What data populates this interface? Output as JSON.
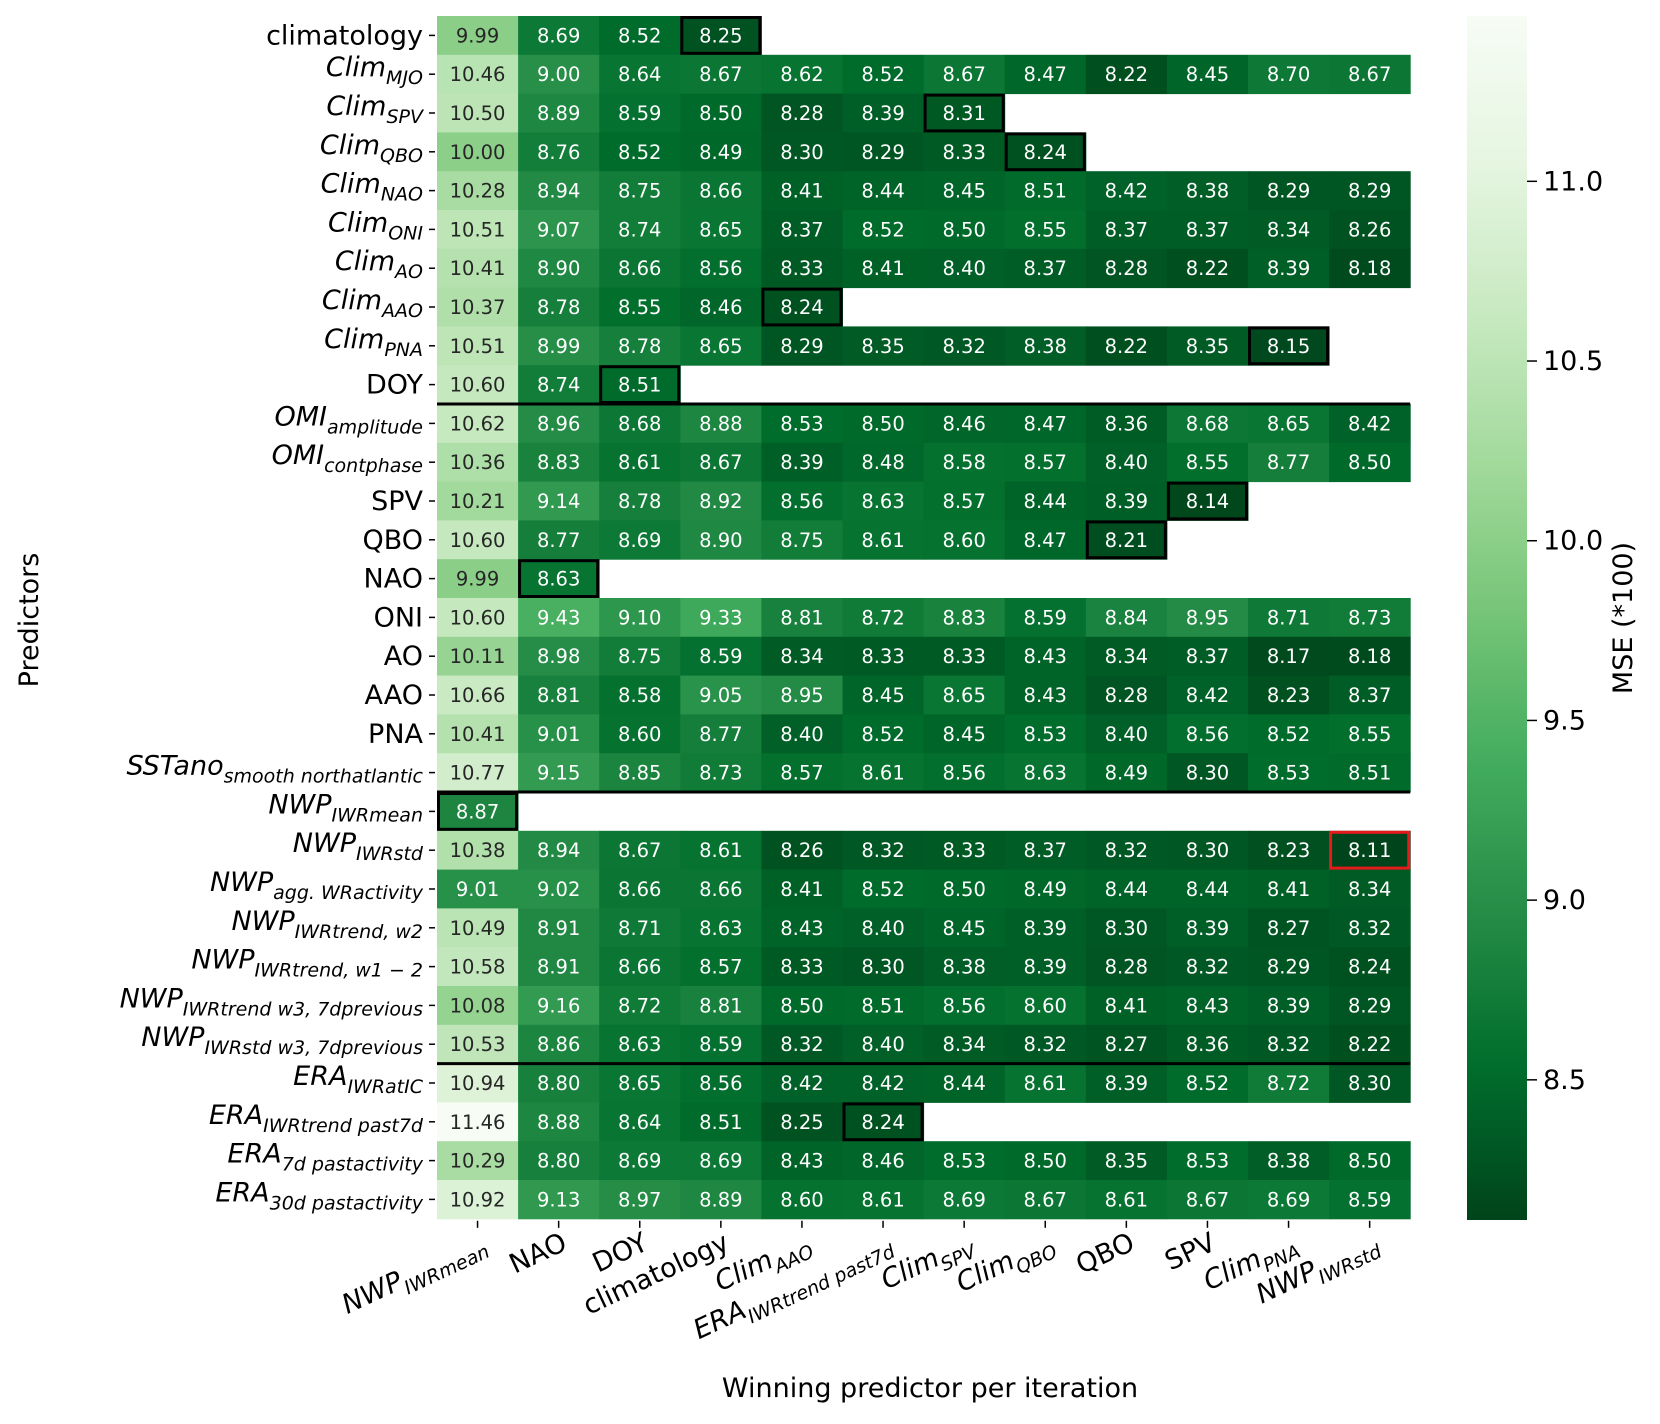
{
  "chart_data": {
    "type": "heatmap",
    "xlabel": "Winning predictor per iteration",
    "ylabel": "Predictors",
    "colorbar": {
      "label": "MSE (*100)",
      "ticks": [
        "8.5",
        "9.0",
        "9.5",
        "10.0",
        "10.5",
        "11.0"
      ],
      "range": [
        8.11,
        11.46
      ],
      "colormap": "Greens_r",
      "color_dark": "#00441b",
      "color_light": "#f7fcf5"
    },
    "columns": [
      {
        "base": "NWP",
        "sub": "IWRmean",
        "italic": true
      },
      {
        "base": "NAO",
        "sub": "",
        "italic": false
      },
      {
        "base": "DOY",
        "sub": "",
        "italic": false
      },
      {
        "base": "climatology",
        "sub": "",
        "italic": false
      },
      {
        "base": "Clim",
        "sub": "AAO",
        "italic": true
      },
      {
        "base": "ERA",
        "sub": "IWRtrend past7d",
        "italic": true
      },
      {
        "base": "Clim",
        "sub": "SPV",
        "italic": true
      },
      {
        "base": "Clim",
        "sub": "QBO",
        "italic": true
      },
      {
        "base": "QBO",
        "sub": "",
        "italic": false
      },
      {
        "base": "SPV",
        "sub": "",
        "italic": false
      },
      {
        "base": "Clim",
        "sub": "PNA",
        "italic": true
      },
      {
        "base": "NWP",
        "sub": "IWRstd",
        "italic": true
      }
    ],
    "rows": [
      {
        "base": "climatology",
        "sub": "",
        "italic": false,
        "values": [
          "9.99",
          "8.69",
          "8.52",
          "8.25"
        ]
      },
      {
        "base": "Clim",
        "sub": "MJO",
        "italic": true,
        "values": [
          "10.46",
          "9.00",
          "8.64",
          "8.67",
          "8.62",
          "8.52",
          "8.67",
          "8.47",
          "8.22",
          "8.45",
          "8.70",
          "8.67"
        ]
      },
      {
        "base": "Clim",
        "sub": "SPV",
        "italic": true,
        "values": [
          "10.50",
          "8.89",
          "8.59",
          "8.50",
          "8.28",
          "8.39",
          "8.31"
        ]
      },
      {
        "base": "Clim",
        "sub": "QBO",
        "italic": true,
        "values": [
          "10.00",
          "8.76",
          "8.52",
          "8.49",
          "8.30",
          "8.29",
          "8.33",
          "8.24"
        ]
      },
      {
        "base": "Clim",
        "sub": "NAO",
        "italic": true,
        "values": [
          "10.28",
          "8.94",
          "8.75",
          "8.66",
          "8.41",
          "8.44",
          "8.45",
          "8.51",
          "8.42",
          "8.38",
          "8.29",
          "8.29"
        ]
      },
      {
        "base": "Clim",
        "sub": "ONI",
        "italic": true,
        "values": [
          "10.51",
          "9.07",
          "8.74",
          "8.65",
          "8.37",
          "8.52",
          "8.50",
          "8.55",
          "8.37",
          "8.37",
          "8.34",
          "8.26"
        ]
      },
      {
        "base": "Clim",
        "sub": "AO",
        "italic": true,
        "values": [
          "10.41",
          "8.90",
          "8.66",
          "8.56",
          "8.33",
          "8.41",
          "8.40",
          "8.37",
          "8.28",
          "8.22",
          "8.39",
          "8.18"
        ]
      },
      {
        "base": "Clim",
        "sub": "AAO",
        "italic": true,
        "values": [
          "10.37",
          "8.78",
          "8.55",
          "8.46",
          "8.24"
        ]
      },
      {
        "base": "Clim",
        "sub": "PNA",
        "italic": true,
        "values": [
          "10.51",
          "8.99",
          "8.78",
          "8.65",
          "8.29",
          "8.35",
          "8.32",
          "8.38",
          "8.22",
          "8.35",
          "8.15"
        ]
      },
      {
        "base": "DOY",
        "sub": "",
        "italic": false,
        "values": [
          "10.60",
          "8.74",
          "8.51"
        ]
      },
      {
        "base": "OMI",
        "sub": "amplitude",
        "italic": true,
        "values": [
          "10.62",
          "8.96",
          "8.68",
          "8.88",
          "8.53",
          "8.50",
          "8.46",
          "8.47",
          "8.36",
          "8.68",
          "8.65",
          "8.42"
        ]
      },
      {
        "base": "OMI",
        "sub": "contphase",
        "italic": true,
        "values": [
          "10.36",
          "8.83",
          "8.61",
          "8.67",
          "8.39",
          "8.48",
          "8.58",
          "8.57",
          "8.40",
          "8.55",
          "8.77",
          "8.50"
        ]
      },
      {
        "base": "SPV",
        "sub": "",
        "italic": false,
        "values": [
          "10.21",
          "9.14",
          "8.78",
          "8.92",
          "8.56",
          "8.63",
          "8.57",
          "8.44",
          "8.39",
          "8.14"
        ]
      },
      {
        "base": "QBO",
        "sub": "",
        "italic": false,
        "values": [
          "10.60",
          "8.77",
          "8.69",
          "8.90",
          "8.75",
          "8.61",
          "8.60",
          "8.47",
          "8.21"
        ]
      },
      {
        "base": "NAO",
        "sub": "",
        "italic": false,
        "values": [
          "9.99",
          "8.63"
        ]
      },
      {
        "base": "ONI",
        "sub": "",
        "italic": false,
        "values": [
          "10.60",
          "9.43",
          "9.10",
          "9.33",
          "8.81",
          "8.72",
          "8.83",
          "8.59",
          "8.84",
          "8.95",
          "8.71",
          "8.73"
        ]
      },
      {
        "base": "AO",
        "sub": "",
        "italic": false,
        "values": [
          "10.11",
          "8.98",
          "8.75",
          "8.59",
          "8.34",
          "8.33",
          "8.33",
          "8.43",
          "8.34",
          "8.37",
          "8.17",
          "8.18"
        ]
      },
      {
        "base": "AAO",
        "sub": "",
        "italic": false,
        "values": [
          "10.66",
          "8.81",
          "8.58",
          "9.05",
          "8.95",
          "8.45",
          "8.65",
          "8.43",
          "8.28",
          "8.42",
          "8.23",
          "8.37"
        ]
      },
      {
        "base": "PNA",
        "sub": "",
        "italic": false,
        "values": [
          "10.41",
          "9.01",
          "8.60",
          "8.77",
          "8.40",
          "8.52",
          "8.45",
          "8.53",
          "8.40",
          "8.56",
          "8.52",
          "8.55"
        ]
      },
      {
        "base": "SSTano",
        "sub": "smooth northatlantic",
        "italic": true,
        "values": [
          "10.77",
          "9.15",
          "8.85",
          "8.73",
          "8.57",
          "8.61",
          "8.56",
          "8.63",
          "8.49",
          "8.30",
          "8.53",
          "8.51"
        ]
      },
      {
        "base": "NWP",
        "sub": "IWRmean",
        "italic": true,
        "values": [
          "8.87"
        ]
      },
      {
        "base": "NWP",
        "sub": "IWRstd",
        "italic": true,
        "values": [
          "10.38",
          "8.94",
          "8.67",
          "8.61",
          "8.26",
          "8.32",
          "8.33",
          "8.37",
          "8.32",
          "8.30",
          "8.23",
          "8.11"
        ]
      },
      {
        "base": "NWP",
        "sub": "agg. WRactivity",
        "italic": true,
        "values": [
          "9.01",
          "9.02",
          "8.66",
          "8.66",
          "8.41",
          "8.52",
          "8.50",
          "8.49",
          "8.44",
          "8.44",
          "8.41",
          "8.34"
        ]
      },
      {
        "base": "NWP",
        "sub": "IWRtrend, w2",
        "italic": true,
        "values": [
          "10.49",
          "8.91",
          "8.71",
          "8.63",
          "8.43",
          "8.40",
          "8.45",
          "8.39",
          "8.30",
          "8.39",
          "8.27",
          "8.32"
        ]
      },
      {
        "base": "NWP",
        "sub": "IWRtrend, w1 − 2",
        "italic": true,
        "values": [
          "10.58",
          "8.91",
          "8.66",
          "8.57",
          "8.33",
          "8.30",
          "8.38",
          "8.39",
          "8.28",
          "8.32",
          "8.29",
          "8.24"
        ]
      },
      {
        "base": "NWP",
        "sub": "IWRtrend w3, 7dprevious",
        "italic": true,
        "values": [
          "10.08",
          "9.16",
          "8.72",
          "8.81",
          "8.50",
          "8.51",
          "8.56",
          "8.60",
          "8.41",
          "8.43",
          "8.39",
          "8.29"
        ]
      },
      {
        "base": "NWP",
        "sub": "IWRstd w3, 7dprevious",
        "italic": true,
        "values": [
          "10.53",
          "8.86",
          "8.63",
          "8.59",
          "8.32",
          "8.40",
          "8.34",
          "8.32",
          "8.27",
          "8.36",
          "8.32",
          "8.22"
        ]
      },
      {
        "base": "ERA",
        "sub": "IWRatIC",
        "italic": true,
        "values": [
          "10.94",
          "8.80",
          "8.65",
          "8.56",
          "8.42",
          "8.42",
          "8.44",
          "8.61",
          "8.39",
          "8.52",
          "8.72",
          "8.30"
        ]
      },
      {
        "base": "ERA",
        "sub": "IWRtrend past7d",
        "italic": true,
        "values": [
          "11.46",
          "8.88",
          "8.64",
          "8.51",
          "8.25",
          "8.24"
        ]
      },
      {
        "base": "ERA",
        "sub": "7d pastactivity",
        "italic": true,
        "values": [
          "10.29",
          "8.80",
          "8.69",
          "8.69",
          "8.43",
          "8.46",
          "8.53",
          "8.50",
          "8.35",
          "8.53",
          "8.38",
          "8.50"
        ]
      },
      {
        "base": "ERA",
        "sub": "30d pastactivity",
        "italic": true,
        "values": [
          "10.92",
          "9.13",
          "8.97",
          "8.89",
          "8.60",
          "8.61",
          "8.69",
          "8.67",
          "8.61",
          "8.67",
          "8.69",
          "8.59"
        ]
      }
    ],
    "winners": [
      {
        "row": 0,
        "col": 3
      },
      {
        "row": 2,
        "col": 6
      },
      {
        "row": 3,
        "col": 7
      },
      {
        "row": 7,
        "col": 4
      },
      {
        "row": 8,
        "col": 10
      },
      {
        "row": 9,
        "col": 2
      },
      {
        "row": 12,
        "col": 9
      },
      {
        "row": 13,
        "col": 8
      },
      {
        "row": 14,
        "col": 1
      },
      {
        "row": 20,
        "col": 0
      },
      {
        "row": 28,
        "col": 5
      }
    ],
    "best": {
      "row": 21,
      "col": 11
    },
    "group_separators_after_rows": [
      9,
      19,
      26
    ]
  }
}
